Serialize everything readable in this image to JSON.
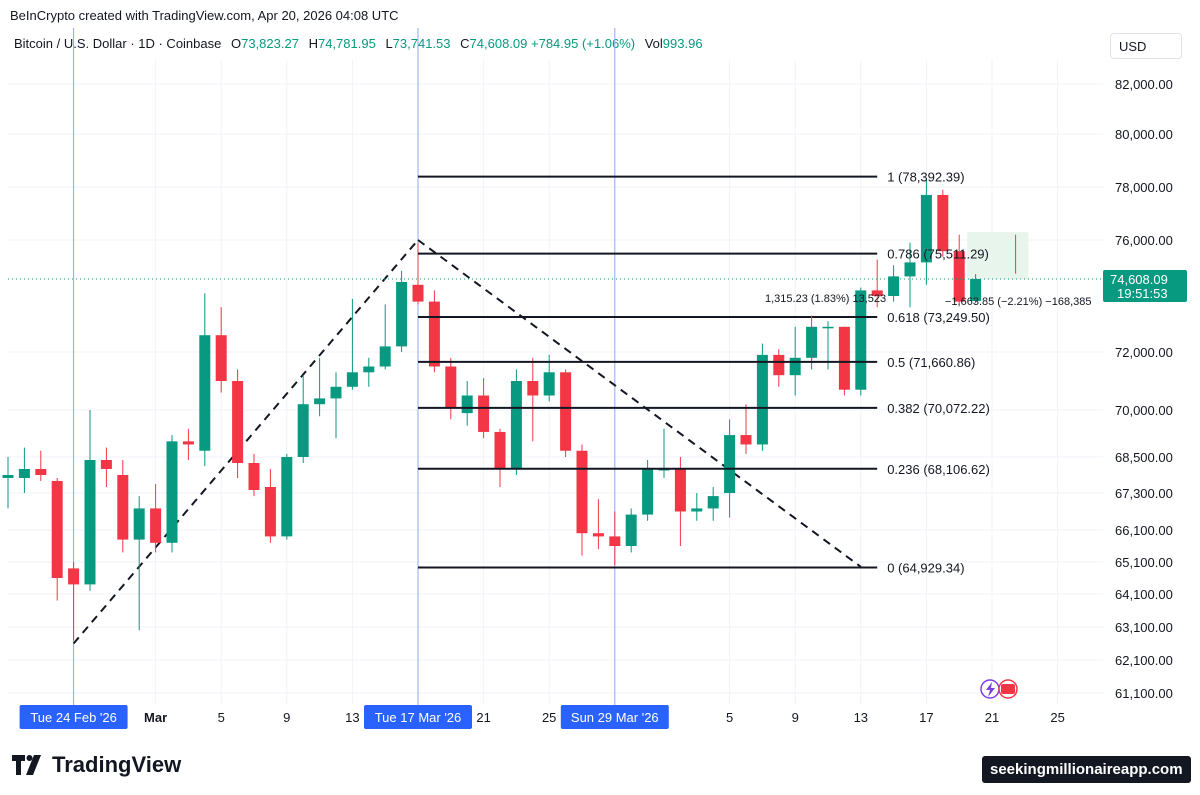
{
  "header": {
    "credit": "BeInCrypto created with TradingView.com, Apr 20, 2026 04:08 UTC",
    "symbol": "Bitcoin / U.S. Dollar · 1D · Coinbase",
    "o_label": "O",
    "o_value": "73,823.27",
    "h_label": "H",
    "h_value": "74,781.95",
    "l_label": "L",
    "l_value": "73,741.53",
    "c_label": "C",
    "c_value": "74,608.09",
    "change": "+784.95 (+1.06%)",
    "vol_label": "Vol",
    "vol_value": "993.96",
    "currency": "USD"
  },
  "footer": {
    "logo_text": "TradingView",
    "watermark": "seekingmillionaireapp.com"
  },
  "colors": {
    "up": "#089981",
    "down": "#f23645",
    "fib_line": "#131722",
    "selection": "#2962ff"
  },
  "chart_data": {
    "type": "candlestick",
    "title": "Bitcoin / U.S. Dollar · 1D · Coinbase",
    "ylim": [
      60700,
      83600
    ],
    "y_ticks": [
      "82,000.00",
      "80,000.00",
      "78,000.00",
      "76,000.00",
      "72,000.00",
      "70,000.00",
      "68,500.00",
      "67,300.00",
      "66,100.00",
      "65,100.00",
      "64,100.00",
      "63,100.00",
      "62,100.00",
      "61,100.00"
    ],
    "y_tick_values": [
      82000,
      80000,
      78000,
      76000,
      72000,
      70000,
      68500,
      67300,
      66100,
      65100,
      64100,
      63100,
      62100,
      61100
    ],
    "x_ticks": [
      {
        "label": "Mar",
        "date": "2026-03-01"
      },
      {
        "label": "5",
        "date": "2026-03-05"
      },
      {
        "label": "9",
        "date": "2026-03-09"
      },
      {
        "label": "13",
        "date": "2026-03-13"
      },
      {
        "label": "21",
        "date": "2026-03-21"
      },
      {
        "label": "25",
        "date": "2026-03-25"
      },
      {
        "label": "5",
        "date": "2026-04-05"
      },
      {
        "label": "9",
        "date": "2026-04-09"
      },
      {
        "label": "13",
        "date": "2026-04-13"
      },
      {
        "label": "17",
        "date": "2026-04-17"
      },
      {
        "label": "21",
        "date": "2026-04-21"
      },
      {
        "label": "25",
        "date": "2026-04-25"
      }
    ],
    "x_selected": [
      {
        "label": "Tue 24 Feb '26",
        "date": "2026-02-24"
      },
      {
        "label": "Tue 17 Mar '26",
        "date": "2026-03-17"
      },
      {
        "label": "Sun 29 Mar '26",
        "date": "2026-03-29"
      }
    ],
    "candles": [
      {
        "date": "2026-02-20",
        "o": 67800,
        "h": 68500,
        "l": 66800,
        "c": 67900
      },
      {
        "date": "2026-02-21",
        "o": 67800,
        "h": 68800,
        "l": 67300,
        "c": 68100
      },
      {
        "date": "2026-02-22",
        "o": 68100,
        "h": 68700,
        "l": 67700,
        "c": 67900
      },
      {
        "date": "2026-02-23",
        "o": 67700,
        "h": 67800,
        "l": 63900,
        "c": 64600
      },
      {
        "date": "2026-02-24",
        "o": 64900,
        "h": 65100,
        "l": 62700,
        "c": 64400
      },
      {
        "date": "2026-02-25",
        "o": 64400,
        "h": 70000,
        "l": 64200,
        "c": 68400
      },
      {
        "date": "2026-02-26",
        "o": 68400,
        "h": 68800,
        "l": 67500,
        "c": 68100
      },
      {
        "date": "2026-02-27",
        "o": 67900,
        "h": 68400,
        "l": 65400,
        "c": 65800
      },
      {
        "date": "2026-02-28",
        "o": 65800,
        "h": 67200,
        "l": 63000,
        "c": 66800
      },
      {
        "date": "2026-03-01",
        "o": 66800,
        "h": 67600,
        "l": 65400,
        "c": 65700
      },
      {
        "date": "2026-03-02",
        "o": 65700,
        "h": 69200,
        "l": 65400,
        "c": 69000
      },
      {
        "date": "2026-03-03",
        "o": 69000,
        "h": 69400,
        "l": 68400,
        "c": 68900
      },
      {
        "date": "2026-03-04",
        "o": 68700,
        "h": 74100,
        "l": 68200,
        "c": 72600
      },
      {
        "date": "2026-03-05",
        "o": 72600,
        "h": 73600,
        "l": 70600,
        "c": 71000
      },
      {
        "date": "2026-03-06",
        "o": 71000,
        "h": 71400,
        "l": 67800,
        "c": 68300
      },
      {
        "date": "2026-03-07",
        "o": 68300,
        "h": 68600,
        "l": 67200,
        "c": 67400
      },
      {
        "date": "2026-03-08",
        "o": 67500,
        "h": 68100,
        "l": 65700,
        "c": 65900
      },
      {
        "date": "2026-03-09",
        "o": 65900,
        "h": 68600,
        "l": 65800,
        "c": 68500
      },
      {
        "date": "2026-03-10",
        "o": 68500,
        "h": 71200,
        "l": 68300,
        "c": 70200
      },
      {
        "date": "2026-03-11",
        "o": 70200,
        "h": 71800,
        "l": 69800,
        "c": 70400
      },
      {
        "date": "2026-03-12",
        "o": 70400,
        "h": 71300,
        "l": 69100,
        "c": 70800
      },
      {
        "date": "2026-03-13",
        "o": 70800,
        "h": 73900,
        "l": 70700,
        "c": 71300
      },
      {
        "date": "2026-03-14",
        "o": 71300,
        "h": 71800,
        "l": 70800,
        "c": 71500
      },
      {
        "date": "2026-03-15",
        "o": 71500,
        "h": 73700,
        "l": 71400,
        "c": 72200
      },
      {
        "date": "2026-03-16",
        "o": 72200,
        "h": 74900,
        "l": 72000,
        "c": 74500
      },
      {
        "date": "2026-03-17",
        "o": 74400,
        "h": 75900,
        "l": 73700,
        "c": 73800
      },
      {
        "date": "2026-03-18",
        "o": 73800,
        "h": 74200,
        "l": 71300,
        "c": 71500
      },
      {
        "date": "2026-03-19",
        "o": 71500,
        "h": 71800,
        "l": 69700,
        "c": 70100
      },
      {
        "date": "2026-03-20",
        "o": 69900,
        "h": 71000,
        "l": 69500,
        "c": 70500
      },
      {
        "date": "2026-03-21",
        "o": 70500,
        "h": 71100,
        "l": 69100,
        "c": 69300
      },
      {
        "date": "2026-03-22",
        "o": 69300,
        "h": 69400,
        "l": 67500,
        "c": 68100
      },
      {
        "date": "2026-03-23",
        "o": 68100,
        "h": 71400,
        "l": 67900,
        "c": 71000
      },
      {
        "date": "2026-03-24",
        "o": 71000,
        "h": 71800,
        "l": 69000,
        "c": 70500
      },
      {
        "date": "2026-03-25",
        "o": 70500,
        "h": 71900,
        "l": 70300,
        "c": 71300
      },
      {
        "date": "2026-03-26",
        "o": 71300,
        "h": 71400,
        "l": 68500,
        "c": 68700
      },
      {
        "date": "2026-03-27",
        "o": 68700,
        "h": 68900,
        "l": 65300,
        "c": 66000
      },
      {
        "date": "2026-03-28",
        "o": 66000,
        "h": 67100,
        "l": 65500,
        "c": 65900
      },
      {
        "date": "2026-03-29",
        "o": 65900,
        "h": 66700,
        "l": 65000,
        "c": 65600
      },
      {
        "date": "2026-03-30",
        "o": 65600,
        "h": 66800,
        "l": 65400,
        "c": 66600
      },
      {
        "date": "2026-03-31",
        "o": 66600,
        "h": 68400,
        "l": 66400,
        "c": 68100
      },
      {
        "date": "2026-04-01",
        "o": 68100,
        "h": 69400,
        "l": 67800,
        "c": 68100
      },
      {
        "date": "2026-04-02",
        "o": 68100,
        "h": 68500,
        "l": 65600,
        "c": 66700
      },
      {
        "date": "2026-04-03",
        "o": 66700,
        "h": 67300,
        "l": 66400,
        "c": 66800
      },
      {
        "date": "2026-04-04",
        "o": 66800,
        "h": 67500,
        "l": 66400,
        "c": 67200
      },
      {
        "date": "2026-04-05",
        "o": 67300,
        "h": 69700,
        "l": 66500,
        "c": 69200
      },
      {
        "date": "2026-04-06",
        "o": 69200,
        "h": 70200,
        "l": 68600,
        "c": 68900
      },
      {
        "date": "2026-04-07",
        "o": 68900,
        "h": 72300,
        "l": 68700,
        "c": 71900
      },
      {
        "date": "2026-04-08",
        "o": 71900,
        "h": 72100,
        "l": 70800,
        "c": 71200
      },
      {
        "date": "2026-04-09",
        "o": 71200,
        "h": 72900,
        "l": 70500,
        "c": 71800
      },
      {
        "date": "2026-04-10",
        "o": 71800,
        "h": 72900,
        "l": 71400,
        "c": 72900
      },
      {
        "date": "2026-04-11",
        "o": 72900,
        "h": 73100,
        "l": 71400,
        "c": 72900
      },
      {
        "date": "2026-04-12",
        "o": 72900,
        "h": 72900,
        "l": 70500,
        "c": 70700
      },
      {
        "date": "2026-04-13",
        "o": 70700,
        "h": 74300,
        "l": 70500,
        "c": 74200
      },
      {
        "date": "2026-04-14",
        "o": 74200,
        "h": 75300,
        "l": 73600,
        "c": 74000
      },
      {
        "date": "2026-04-15",
        "o": 74000,
        "h": 75100,
        "l": 73800,
        "c": 74700
      },
      {
        "date": "2026-04-16",
        "o": 74700,
        "h": 75900,
        "l": 73600,
        "c": 75200
      },
      {
        "date": "2026-04-17",
        "o": 75200,
        "h": 78300,
        "l": 74400,
        "c": 77700
      },
      {
        "date": "2026-04-18",
        "o": 77700,
        "h": 77900,
        "l": 75400,
        "c": 75600
      },
      {
        "date": "2026-04-19",
        "o": 75600,
        "h": 76200,
        "l": 73700,
        "c": 73800
      },
      {
        "date": "2026-04-20",
        "o": 73823.27,
        "h": 74781.95,
        "l": 73741.53,
        "c": 74608.09
      }
    ],
    "fib_levels": [
      {
        "label": "1 (78,392.39)",
        "value": 78392.39
      },
      {
        "label": "0.786 (75,511.29)",
        "value": 75511.29
      },
      {
        "label": "0.618 (73,249.50)",
        "value": 73249.5
      },
      {
        "label": "0.5 (71,660.86)",
        "value": 71660.86
      },
      {
        "label": "0.382 (70,072.22)",
        "value": 70072.22
      },
      {
        "label": "0.236 (68,106.62)",
        "value": 68106.62
      },
      {
        "label": "0 (64,929.34)",
        "value": 64929.34
      }
    ],
    "fib_start": "2026-03-17",
    "fib_end": "2026-04-14",
    "trendlines": [
      {
        "from": {
          "date": "2026-02-24",
          "value": 62600
        },
        "to": {
          "date": "2026-03-17",
          "value": 76000
        }
      },
      {
        "from": {
          "date": "2026-03-17",
          "value": 76000
        },
        "to": {
          "date": "2026-04-13",
          "value": 64950
        }
      }
    ],
    "measure_annotations": [
      {
        "label": "1,315.23 (1.83%) 13,523",
        "date": "2026-04-10",
        "value": 73500
      },
      {
        "label": "−1,663.85 (−2.21%) −168,385",
        "date": "2026-04-19",
        "value": 73500
      }
    ],
    "last_price": {
      "value": 74608.09,
      "label": "74,608.09",
      "countdown": "19:51:53"
    }
  }
}
